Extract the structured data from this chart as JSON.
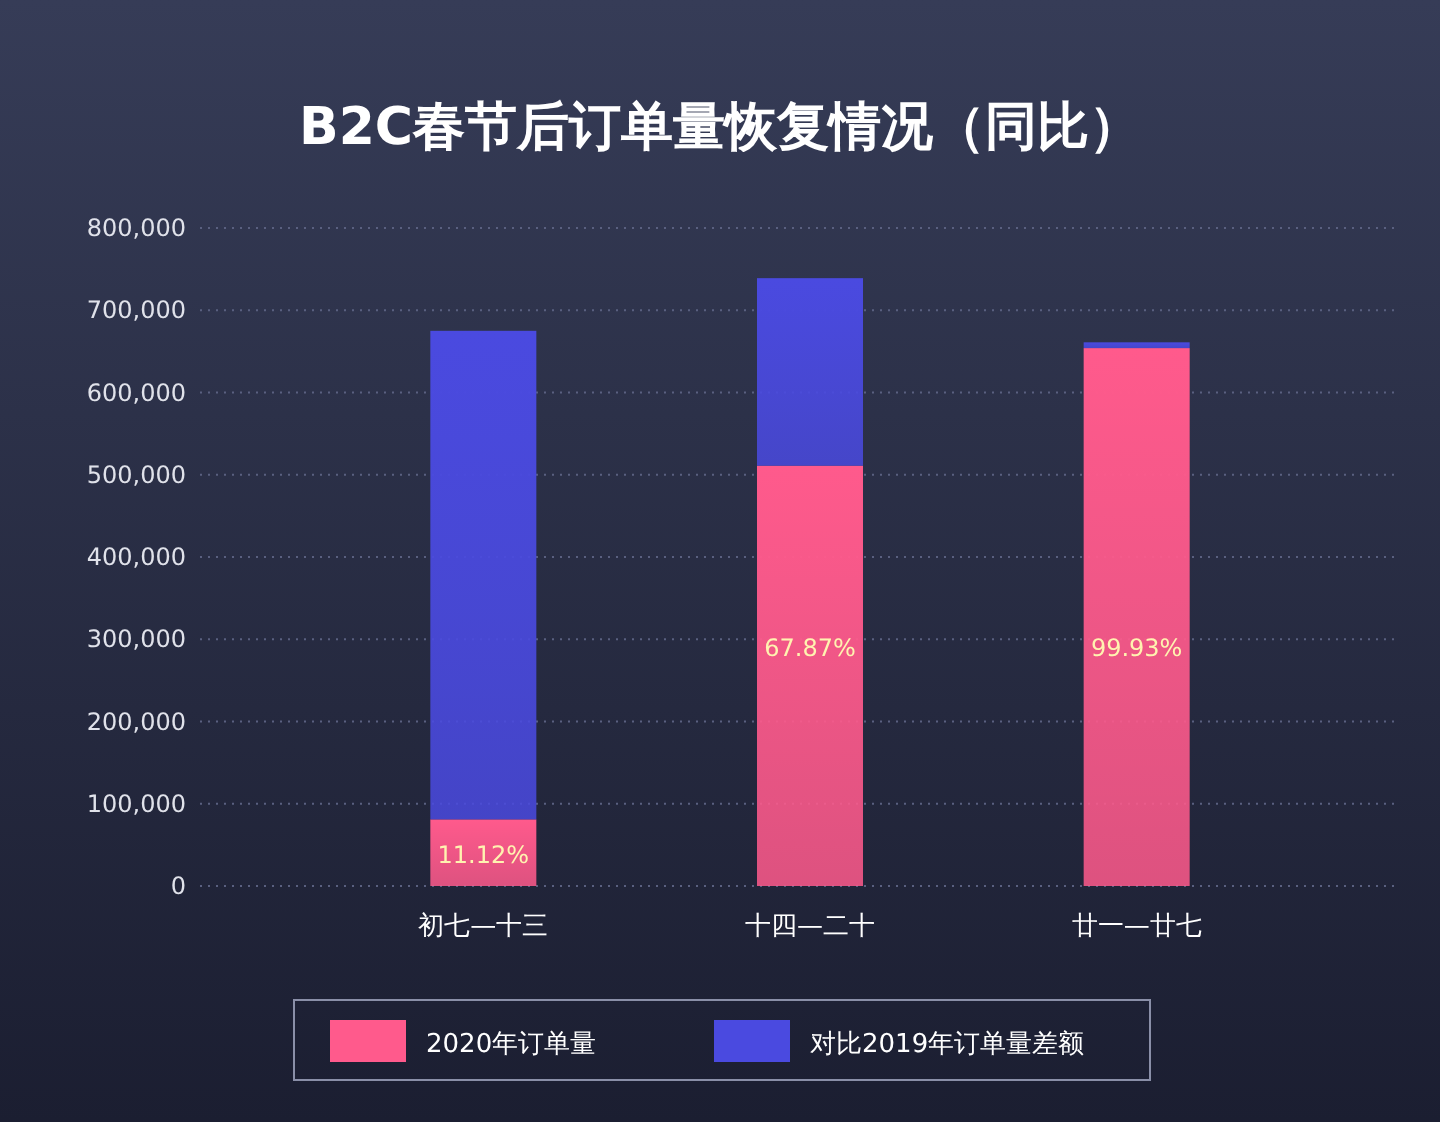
{
  "chart_data": {
    "type": "bar",
    "title": "B2C春节后订单量恢复情况（同比）",
    "categories": [
      "初七—十三",
      "十四—二十",
      "廿一—廿七"
    ],
    "stacked": true,
    "series": [
      {
        "name": "2020年订单量",
        "color": "#ff5a8c",
        "values": [
          81000,
          511000,
          654000
        ]
      },
      {
        "name": "对比2019年订单量差额",
        "color": "#4a4ae0",
        "values": [
          594000,
          228000,
          7000
        ]
      }
    ],
    "ylim": [
      0,
      800000
    ],
    "yticks": [
      {
        "value": 0,
        "label": "0"
      },
      {
        "value": 100000,
        "label": "100,000"
      },
      {
        "value": 200000,
        "label": "200,000"
      },
      {
        "value": 300000,
        "label": "300,000"
      },
      {
        "value": 400000,
        "label": "400,000"
      },
      {
        "value": 500000,
        "label": "500,000"
      },
      {
        "value": 600000,
        "label": "600,000"
      },
      {
        "value": 700000,
        "label": "700,000"
      },
      {
        "value": 800000,
        "label": "800,000"
      }
    ],
    "annotations": [
      "11.12%",
      "67.87%",
      "99.93%"
    ],
    "grid": "y",
    "legend": "bottom"
  }
}
